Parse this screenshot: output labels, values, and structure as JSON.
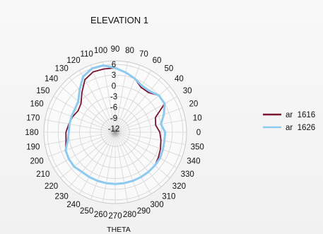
{
  "chart_data": {
    "type": "line",
    "subtype": "polar",
    "title": "ELEVATION 1",
    "angle_label": "THETA",
    "angle_ticks": [
      0,
      10,
      20,
      30,
      40,
      50,
      60,
      70,
      80,
      90,
      100,
      110,
      120,
      130,
      140,
      150,
      160,
      170,
      180,
      190,
      200,
      210,
      220,
      230,
      240,
      250,
      260,
      270,
      280,
      290,
      300,
      310,
      320,
      330,
      340,
      350
    ],
    "radial_ticks": [
      6,
      3,
      0,
      -3,
      -6,
      -9,
      -12
    ],
    "rlim": [
      -13,
      7
    ],
    "grid": true,
    "legend_position": "right",
    "colors": {
      "ar 1616": "#7b1230",
      "ar 1626": "#8ec9ef"
    },
    "series": [
      {
        "name": "ar  1616",
        "color": "#7b1230",
        "theta": [
          0,
          10,
          20,
          30,
          40,
          50,
          60,
          70,
          80,
          90,
          100,
          110,
          120,
          130,
          140,
          150,
          160,
          170,
          180,
          190,
          200,
          210,
          220,
          230,
          240,
          250,
          260,
          270,
          280,
          290,
          300,
          310,
          320,
          330,
          340,
          350
        ],
        "r": [
          -0.5,
          -1.5,
          -1,
          3,
          3,
          1.5,
          1.5,
          3,
          4,
          5,
          5,
          5,
          4,
          1.5,
          -0.5,
          -1,
          -0.3,
          0.2,
          0.8,
          1,
          1.8,
          2,
          2,
          1.5,
          1.5,
          1.5,
          1.5,
          1.5,
          1.5,
          1.5,
          1.5,
          1.5,
          1.5,
          1,
          0.5,
          0
        ]
      },
      {
        "name": "ar  1626",
        "color": "#8ec9ef",
        "theta": [
          0,
          10,
          20,
          30,
          40,
          50,
          60,
          70,
          80,
          90,
          100,
          110,
          120,
          130,
          140,
          150,
          160,
          170,
          180,
          190,
          200,
          210,
          220,
          230,
          240,
          250,
          260,
          270,
          280,
          290,
          300,
          310,
          320,
          330,
          340,
          350
        ],
        "r": [
          1,
          0,
          1.5,
          3,
          3,
          2,
          2,
          3,
          4,
          5,
          6,
          6,
          5,
          2.5,
          0.5,
          0,
          0,
          0,
          0,
          0.5,
          1.8,
          2,
          2,
          1.5,
          1.5,
          1.5,
          1.5,
          1.5,
          1.5,
          1.5,
          1.5,
          1.5,
          1.5,
          1.5,
          1.2,
          1
        ]
      }
    ]
  }
}
